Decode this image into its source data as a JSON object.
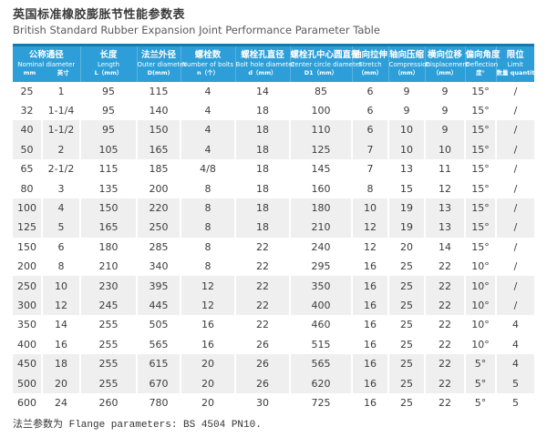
{
  "title": {
    "zh": "英国标准橡胶膨胀节性能参数表",
    "en": "British Standard Rubber Expansion Joint Performance Parameter Table"
  },
  "colors": {
    "header_bg": "#2d9ed7",
    "header_top": "#1878b4",
    "row_alt_bg": "#efefef",
    "header_text": "#ffffff"
  },
  "table": {
    "columns": [
      {
        "zh": "公称通径",
        "en": "Nominal diameter",
        "sub_units": [
          "mm",
          "英寸"
        ]
      },
      {
        "zh": "长度",
        "en": "Length",
        "unit": "L（mm）"
      },
      {
        "zh": "法兰外径",
        "en": "Outer diameter",
        "unit": "D(mm)"
      },
      {
        "zh": "螺栓数",
        "en": "Number of bolts",
        "unit": "n（个）"
      },
      {
        "zh": "螺栓孔直径",
        "en": "Bolt hole diameter",
        "unit": "d（mm）"
      },
      {
        "zh": "螺栓孔中心圆直径",
        "en": "Center circle diameter",
        "unit": "D1（mm）"
      },
      {
        "zh": "轴向拉伸",
        "en": "Stretch",
        "unit": "（mm）"
      },
      {
        "zh": "轴向压缩",
        "en": "Compression",
        "unit": "（mm）"
      },
      {
        "zh": "横向位移",
        "en": "Displacement",
        "unit": "（mm）"
      },
      {
        "zh": "偏向角度",
        "en": "Deflection",
        "unit": "度°"
      },
      {
        "zh": "限位",
        "en": "Limit",
        "unit": "数量 quantity"
      }
    ],
    "rows": [
      [
        "25",
        "1",
        "95",
        "115",
        "4",
        "14",
        "85",
        "6",
        "9",
        "9",
        "15°",
        "/"
      ],
      [
        "32",
        "1-1/4",
        "95",
        "140",
        "4",
        "18",
        "100",
        "6",
        "9",
        "9",
        "15°",
        "/"
      ],
      [
        "40",
        "1-1/2",
        "95",
        "150",
        "4",
        "18",
        "110",
        "6",
        "10",
        "9",
        "15°",
        "/"
      ],
      [
        "50",
        "2",
        "105",
        "165",
        "4",
        "18",
        "125",
        "7",
        "10",
        "10",
        "15°",
        "/"
      ],
      [
        "65",
        "2-1/2",
        "115",
        "185",
        "4/8",
        "18",
        "145",
        "7",
        "13",
        "11",
        "15°",
        "/"
      ],
      [
        "80",
        "3",
        "135",
        "200",
        "8",
        "18",
        "160",
        "8",
        "15",
        "12",
        "15°",
        "/"
      ],
      [
        "100",
        "4",
        "150",
        "220",
        "8",
        "18",
        "180",
        "10",
        "19",
        "13",
        "15°",
        "/"
      ],
      [
        "125",
        "5",
        "165",
        "250",
        "8",
        "18",
        "210",
        "12",
        "19",
        "13",
        "15°",
        "/"
      ],
      [
        "150",
        "6",
        "180",
        "285",
        "8",
        "22",
        "240",
        "12",
        "20",
        "14",
        "15°",
        "/"
      ],
      [
        "200",
        "8",
        "210",
        "340",
        "8",
        "22",
        "295",
        "16",
        "25",
        "22",
        "10°",
        "/"
      ],
      [
        "250",
        "10",
        "230",
        "395",
        "12",
        "22",
        "350",
        "16",
        "25",
        "22",
        "10°",
        "/"
      ],
      [
        "300",
        "12",
        "245",
        "445",
        "12",
        "22",
        "400",
        "16",
        "25",
        "22",
        "10°",
        "/"
      ],
      [
        "350",
        "14",
        "255",
        "505",
        "16",
        "22",
        "460",
        "16",
        "25",
        "22",
        "10°",
        "4"
      ],
      [
        "400",
        "16",
        "255",
        "565",
        "16",
        "26",
        "515",
        "16",
        "25",
        "22",
        "10°",
        "4"
      ],
      [
        "450",
        "18",
        "255",
        "615",
        "20",
        "26",
        "565",
        "16",
        "25",
        "22",
        "5°",
        "4"
      ],
      [
        "500",
        "20",
        "255",
        "670",
        "20",
        "26",
        "620",
        "16",
        "25",
        "22",
        "5°",
        "5"
      ],
      [
        "600",
        "24",
        "260",
        "780",
        "20",
        "30",
        "725",
        "16",
        "25",
        "22",
        "5°",
        "5"
      ]
    ]
  },
  "footer": "法兰参数为 Flange parameters: BS 4504 PN10."
}
